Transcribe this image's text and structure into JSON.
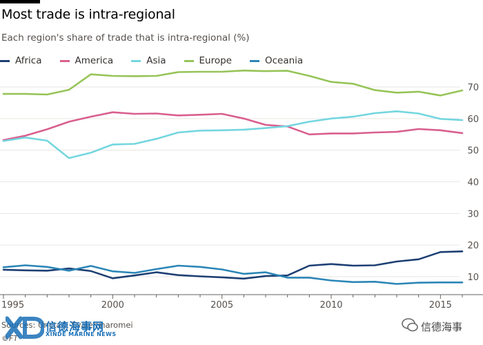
{
  "header": {
    "title": "Most trade is intra-regional",
    "subtitle": "Each region's share of trade that is intra-regional (%)"
  },
  "footer": {
    "source": "Sources: Unctad; Evaiehinaromei",
    "copyright": "©FT"
  },
  "watermark": {
    "logo_text": "信德海事网",
    "logo_subtext": "XINDE MARINE NEWS",
    "brand": "信德海事"
  },
  "chart_data": {
    "type": "line",
    "title": "Most trade is intra-regional",
    "subtitle": "Each region's share of trade that is intra-regional (%)",
    "xlabel": "",
    "ylabel": "",
    "xlim": [
      1995,
      2016
    ],
    "ylim": [
      8,
      75
    ],
    "x_ticks": [
      1995,
      2000,
      2005,
      2010,
      2015
    ],
    "y_ticks": [
      10,
      20,
      30,
      40,
      50,
      60,
      70
    ],
    "grid": true,
    "legend_position": "top",
    "x": [
      1995,
      1996,
      1997,
      1998,
      1999,
      2000,
      2001,
      2002,
      2003,
      2004,
      2005,
      2006,
      2007,
      2008,
      2009,
      2010,
      2011,
      2012,
      2013,
      2014,
      2015,
      2016
    ],
    "series": [
      {
        "name": "Africa",
        "color": "#1d3f73",
        "values": [
          12.2,
          12.0,
          11.9,
          12.6,
          11.8,
          9.5,
          10.4,
          11.4,
          10.5,
          10.1,
          9.8,
          9.4,
          10.2,
          10.4,
          13.5,
          14.0,
          13.5,
          13.6,
          14.8,
          15.5,
          17.8,
          18.0
        ]
      },
      {
        "name": "America",
        "color": "#d95f8e",
        "values": [
          53.2,
          54.6,
          56.6,
          59.0,
          60.6,
          62.0,
          61.5,
          61.6,
          61.0,
          61.2,
          61.5,
          60.0,
          58.0,
          57.5,
          55.0,
          55.3,
          55.3,
          55.6,
          55.8,
          56.7,
          56.3,
          55.4
        ]
      },
      {
        "name": "Asia",
        "color": "#74d6df",
        "values": [
          52.9,
          54.0,
          53.0,
          47.5,
          49.2,
          51.8,
          52.0,
          53.6,
          55.6,
          56.2,
          56.3,
          56.5,
          57.0,
          57.6,
          59.0,
          60.0,
          60.6,
          61.7,
          62.3,
          61.6,
          59.9,
          59.5
        ]
      },
      {
        "name": "Europe",
        "color": "#96c457",
        "values": [
          67.8,
          67.8,
          67.6,
          69.1,
          74.0,
          73.5,
          73.4,
          73.5,
          74.7,
          74.8,
          74.8,
          75.2,
          75.0,
          75.1,
          73.5,
          71.6,
          71.0,
          69.0,
          68.2,
          68.5,
          67.3,
          68.9
        ]
      },
      {
        "name": "Oceania",
        "color": "#2b86b6",
        "values": [
          13.0,
          13.6,
          13.1,
          11.9,
          13.4,
          11.7,
          11.2,
          12.4,
          13.5,
          13.1,
          12.3,
          10.9,
          11.4,
          9.7,
          9.7,
          8.8,
          8.3,
          8.4,
          7.7,
          8.1,
          8.2,
          8.2
        ]
      }
    ]
  }
}
